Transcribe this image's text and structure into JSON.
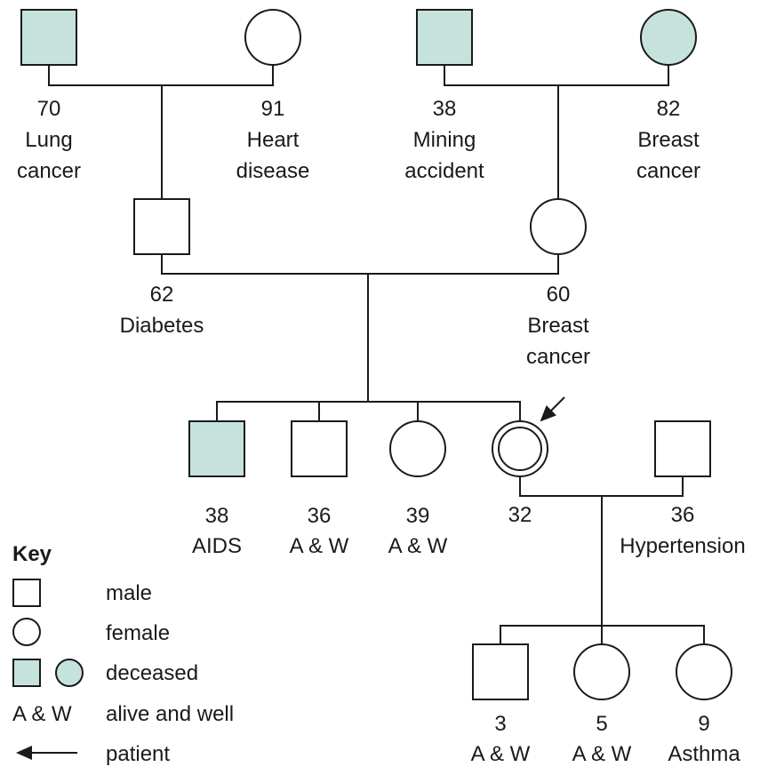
{
  "colors": {
    "deceased": "#c5e3dc",
    "alive": "#ffffff",
    "stroke": "#1a1a1a"
  },
  "individuals": {
    "pgf": {
      "sex": "male",
      "deceased": true,
      "lines": [
        "70",
        "Lung",
        "cancer"
      ]
    },
    "pgm": {
      "sex": "female",
      "deceased": false,
      "lines": [
        "91",
        "Heart",
        "disease"
      ]
    },
    "mgf": {
      "sex": "male",
      "deceased": true,
      "lines": [
        "38",
        "Mining",
        "accident"
      ]
    },
    "mgm": {
      "sex": "female",
      "deceased": true,
      "lines": [
        "82",
        "Breast",
        "cancer"
      ]
    },
    "father": {
      "sex": "male",
      "deceased": false,
      "lines": [
        "62",
        "Diabetes"
      ]
    },
    "mother": {
      "sex": "female",
      "deceased": false,
      "lines": [
        "60",
        "Breast",
        "cancer"
      ]
    },
    "sib1": {
      "sex": "male",
      "deceased": true,
      "lines": [
        "38",
        "AIDS"
      ]
    },
    "sib2": {
      "sex": "male",
      "deceased": false,
      "lines": [
        "36",
        "A & W"
      ]
    },
    "sib3": {
      "sex": "female",
      "deceased": false,
      "lines": [
        "39",
        "A & W"
      ]
    },
    "patient": {
      "sex": "female",
      "deceased": false,
      "proband": true,
      "lines": [
        "32"
      ]
    },
    "spouse": {
      "sex": "male",
      "deceased": false,
      "lines": [
        "36",
        "Hypertension"
      ]
    },
    "child1": {
      "sex": "male",
      "deceased": false,
      "lines": [
        "3",
        "A & W"
      ]
    },
    "child2": {
      "sex": "female",
      "deceased": false,
      "lines": [
        "5",
        "A & W"
      ]
    },
    "child3": {
      "sex": "female",
      "deceased": false,
      "lines": [
        "9",
        "Asthma"
      ]
    }
  },
  "key": {
    "title": "Key",
    "male": "male",
    "female": "female",
    "deceased": "deceased",
    "aw_symbol": "A & W",
    "aw": "alive and well",
    "patient": "patient"
  }
}
